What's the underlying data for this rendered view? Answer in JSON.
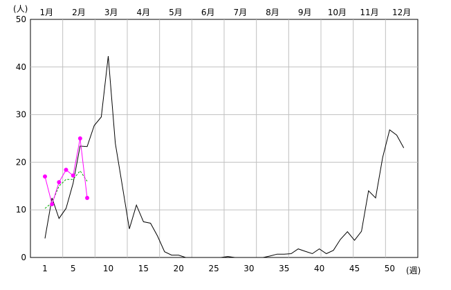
{
  "chart_data": {
    "type": "line",
    "y_unit_label": "(人)",
    "x_unit_label": "(週)",
    "ylim": [
      0,
      50
    ],
    "xlim": [
      0,
      53
    ],
    "y_ticks": [
      0,
      10,
      20,
      30,
      40,
      50
    ],
    "x_ticks": [
      1,
      5,
      10,
      15,
      20,
      25,
      30,
      35,
      40,
      45,
      50
    ],
    "months": [
      "1月",
      "2月",
      "3月",
      "4月",
      "5月",
      "6月",
      "7月",
      "8月",
      "9月",
      "10月",
      "11月",
      "12月"
    ],
    "grid": true,
    "series": [
      {
        "color": "#000000",
        "style": "solid",
        "markers": false,
        "x": [
          1,
          2,
          3,
          4,
          5,
          6,
          7,
          8,
          9,
          10,
          11,
          12,
          13,
          14,
          15,
          16,
          17,
          18,
          19,
          20,
          21,
          22,
          23,
          24,
          25,
          26,
          27,
          28,
          29,
          30,
          31,
          32,
          33,
          34,
          35,
          36,
          37,
          38,
          39,
          40,
          41,
          42,
          43,
          44,
          45,
          46,
          47,
          48,
          49,
          50,
          51,
          52
        ],
        "values": [
          4,
          12.5,
          8.2,
          10.3,
          15.6,
          23.4,
          23.3,
          27.7,
          29.5,
          42.3,
          24,
          15,
          6,
          11,
          7.5,
          7.2,
          4.5,
          1.2,
          0.5,
          0.5,
          0,
          0,
          0,
          0,
          0,
          0,
          0.2,
          0,
          0,
          0,
          0,
          0,
          0.3,
          0.7,
          0.7,
          0.8,
          1.8,
          1.3,
          0.8,
          1.8,
          0.8,
          1.5,
          3.8,
          5.4,
          3.6,
          5.5,
          14,
          12.5,
          21,
          26.8,
          25.7,
          23
        ]
      },
      {
        "color": "#00aa00",
        "style": "dashed",
        "markers": false,
        "x": [
          1,
          2,
          3,
          4,
          5,
          6,
          7
        ],
        "values": [
          10.3,
          11.5,
          15,
          16.4,
          16.4,
          18.2,
          16
        ]
      },
      {
        "color": "#ff00ff",
        "style": "solid",
        "markers": true,
        "x": [
          1,
          2,
          3,
          4,
          5,
          6,
          7
        ],
        "values": [
          17,
          11.2,
          15.8,
          18.4,
          17.2,
          25,
          12.5
        ]
      }
    ]
  }
}
